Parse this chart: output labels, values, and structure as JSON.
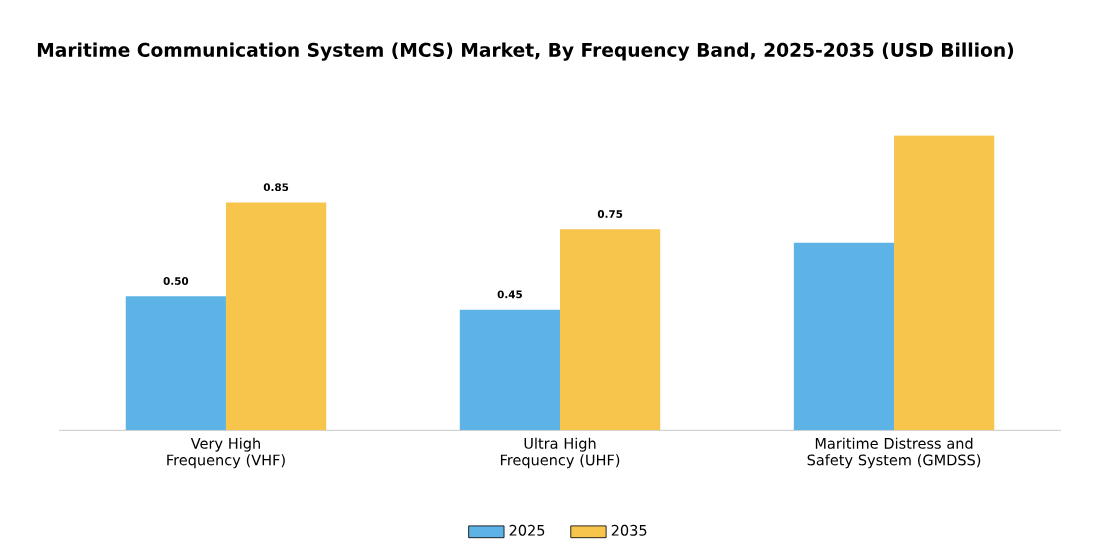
{
  "chart_data": {
    "type": "bar",
    "title": "Maritime Communication System (MCS) Market, By Frequency Band, 2025-2035 (USD Billion)",
    "categories": [
      "Very High Frequency (VHF)",
      "Ultra High Frequency (UHF)",
      "Maritime Distress and Safety System (GMDSS)"
    ],
    "series": [
      {
        "name": "2025",
        "color": "#5db3e6",
        "values": [
          0.5,
          0.45,
          0.7
        ],
        "value_labels": [
          "0.50",
          "0.45",
          null
        ]
      },
      {
        "name": "2035",
        "color": "#f7c44c",
        "values": [
          0.85,
          0.75,
          1.1
        ],
        "value_labels": [
          "0.85",
          "0.75",
          null
        ]
      }
    ],
    "legend": "bottom"
  }
}
